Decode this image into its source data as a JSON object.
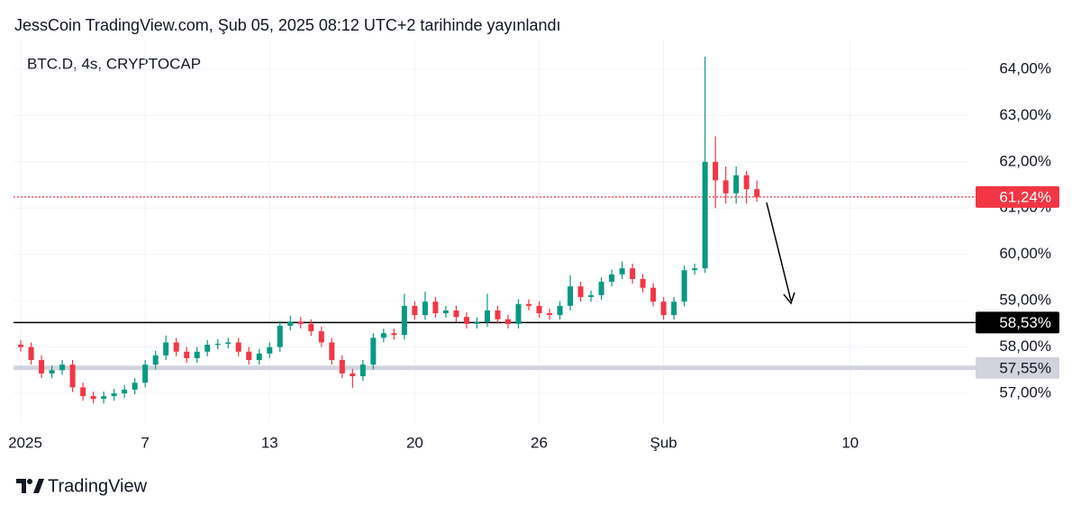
{
  "header": {
    "title": "JessCoin TradingView.com, Şub 05, 2025 08:12 UTC+2 tarihinde yayınlandı"
  },
  "footer": {
    "brand": "TradingView"
  },
  "chart_data": {
    "type": "candlestick",
    "subtitle": "BTC.D, 4s, CRYPTOCAP",
    "up_color": "#089981",
    "down_color": "#f23645",
    "grid": true,
    "xlim": [
      -0.35,
      45.7
    ],
    "xticks": [
      {
        "value": 0,
        "label": "2025"
      },
      {
        "value": 6,
        "label": "7"
      },
      {
        "value": 12,
        "label": "13"
      },
      {
        "value": 19,
        "label": "20"
      },
      {
        "value": 25,
        "label": "26"
      },
      {
        "value": 31,
        "label": "Şub"
      },
      {
        "value": 40,
        "label": "10"
      }
    ],
    "ylim": [
      56.36,
      64.62
    ],
    "yticks": [
      {
        "value": 57,
        "label": "57,00%"
      },
      {
        "value": 58,
        "label": "58,00%"
      },
      {
        "value": 59,
        "label": "59,00%"
      },
      {
        "value": 60,
        "label": "60,00%"
      },
      {
        "value": 61,
        "label": "61,00%"
      },
      {
        "value": 62,
        "label": "62,00%"
      },
      {
        "value": 63,
        "label": "63,00%"
      },
      {
        "value": 64,
        "label": "64,00%"
      }
    ],
    "x": [
      0,
      0.5,
      1,
      1.5,
      2,
      2.5,
      3,
      3.5,
      4,
      4.5,
      5,
      5.5,
      6,
      6.5,
      7,
      7.5,
      8,
      8.5,
      9,
      9.5,
      10,
      10.5,
      11,
      11.5,
      12,
      12.5,
      13,
      13.5,
      14,
      14.5,
      15,
      15.5,
      16,
      16.5,
      17,
      17.5,
      18,
      18.5,
      19,
      19.5,
      20,
      20.5,
      21,
      21.5,
      22,
      22.5,
      23,
      23.5,
      24,
      24.5,
      25,
      25.5,
      26,
      26.5,
      27,
      27.5,
      28,
      28.5,
      29,
      29.5,
      30,
      30.5,
      31,
      31.5,
      32,
      32.5,
      33,
      33.5,
      34,
      34.5,
      35,
      35.5
    ],
    "open": [
      58.05,
      58.0,
      57.72,
      57.43,
      57.5,
      57.62,
      57.13,
      56.94,
      56.88,
      56.94,
      57.0,
      57.08,
      57.23,
      57.62,
      57.82,
      58.1,
      57.9,
      57.76,
      57.9,
      58.05,
      58.07,
      58.1,
      57.9,
      57.72,
      57.86,
      58.0,
      58.46,
      58.55,
      58.5,
      58.34,
      58.1,
      57.72,
      57.43,
      57.37,
      57.62,
      58.2,
      58.3,
      58.26,
      58.89,
      58.69,
      58.98,
      58.73,
      58.79,
      58.65,
      58.5,
      58.54,
      58.79,
      58.6,
      58.5,
      58.93,
      58.89,
      58.73,
      58.69,
      58.89,
      59.31,
      59.08,
      59.12,
      59.41,
      59.57,
      59.7,
      59.47,
      59.28,
      58.98,
      58.69,
      58.98,
      59.66,
      59.7,
      62.0,
      61.6,
      61.32,
      61.71,
      61.41
    ],
    "high": [
      58.15,
      58.1,
      57.82,
      57.6,
      57.72,
      57.72,
      57.23,
      57.04,
      57.04,
      57.1,
      57.18,
      57.33,
      57.72,
      57.92,
      58.25,
      58.2,
      58.0,
      58.0,
      58.15,
      58.17,
      58.2,
      58.2,
      58.0,
      57.96,
      58.1,
      58.56,
      58.68,
      58.65,
      58.6,
      58.44,
      58.2,
      57.82,
      57.53,
      57.72,
      58.3,
      58.4,
      58.4,
      59.15,
      58.99,
      59.2,
      59.08,
      58.89,
      58.89,
      58.75,
      58.64,
      59.15,
      58.89,
      58.7,
      59.03,
      59.03,
      58.99,
      58.83,
      58.99,
      59.55,
      59.41,
      59.22,
      59.51,
      59.67,
      59.85,
      59.8,
      59.57,
      59.38,
      59.08,
      59.08,
      59.76,
      59.8,
      64.27,
      62.55,
      61.9,
      61.9,
      61.81,
      61.6
    ],
    "low": [
      57.9,
      57.62,
      57.33,
      57.33,
      57.4,
      57.03,
      56.84,
      56.78,
      56.78,
      56.84,
      56.9,
      56.98,
      57.13,
      57.52,
      57.72,
      57.8,
      57.66,
      57.66,
      57.8,
      57.95,
      57.97,
      57.8,
      57.62,
      57.62,
      57.76,
      57.9,
      58.36,
      58.4,
      58.24,
      58.0,
      57.62,
      57.33,
      57.12,
      57.27,
      57.52,
      58.1,
      58.16,
      58.16,
      58.59,
      58.59,
      58.63,
      58.63,
      58.55,
      58.4,
      58.4,
      58.44,
      58.5,
      58.4,
      58.4,
      58.79,
      58.63,
      58.59,
      58.59,
      58.79,
      58.98,
      58.98,
      59.02,
      59.31,
      59.47,
      59.37,
      59.18,
      58.88,
      58.59,
      58.59,
      58.88,
      59.56,
      59.6,
      61.0,
      61.1,
      61.1,
      61.1,
      61.14
    ],
    "close": [
      58.0,
      57.72,
      57.43,
      57.5,
      57.62,
      57.13,
      56.94,
      56.88,
      56.94,
      57.0,
      57.08,
      57.23,
      57.62,
      57.82,
      58.1,
      57.9,
      57.76,
      57.9,
      58.05,
      58.07,
      58.1,
      57.9,
      57.72,
      57.86,
      58.0,
      58.46,
      58.55,
      58.5,
      58.34,
      58.1,
      57.72,
      57.43,
      57.37,
      57.62,
      58.2,
      58.3,
      58.26,
      58.89,
      58.69,
      58.98,
      58.73,
      58.79,
      58.65,
      58.5,
      58.54,
      58.79,
      58.6,
      58.5,
      58.93,
      58.89,
      58.73,
      58.69,
      58.89,
      59.31,
      59.08,
      59.12,
      59.41,
      59.57,
      59.7,
      59.47,
      59.28,
      58.98,
      58.69,
      58.98,
      59.66,
      59.7,
      62.0,
      61.6,
      61.32,
      61.71,
      61.41,
      61.24
    ],
    "levels": [
      {
        "value": 61.24,
        "label": "61,24%",
        "color": "#f23645",
        "text_color": "#ffffff",
        "style": "dotted"
      },
      {
        "value": 58.53,
        "label": "58,53%",
        "color": "#000000",
        "text_color": "#ffffff",
        "style": "solid"
      },
      {
        "value": 57.55,
        "label": "57,55%",
        "color": "#d1d4dc",
        "text_color": "#131722",
        "style": "solid"
      }
    ]
  }
}
